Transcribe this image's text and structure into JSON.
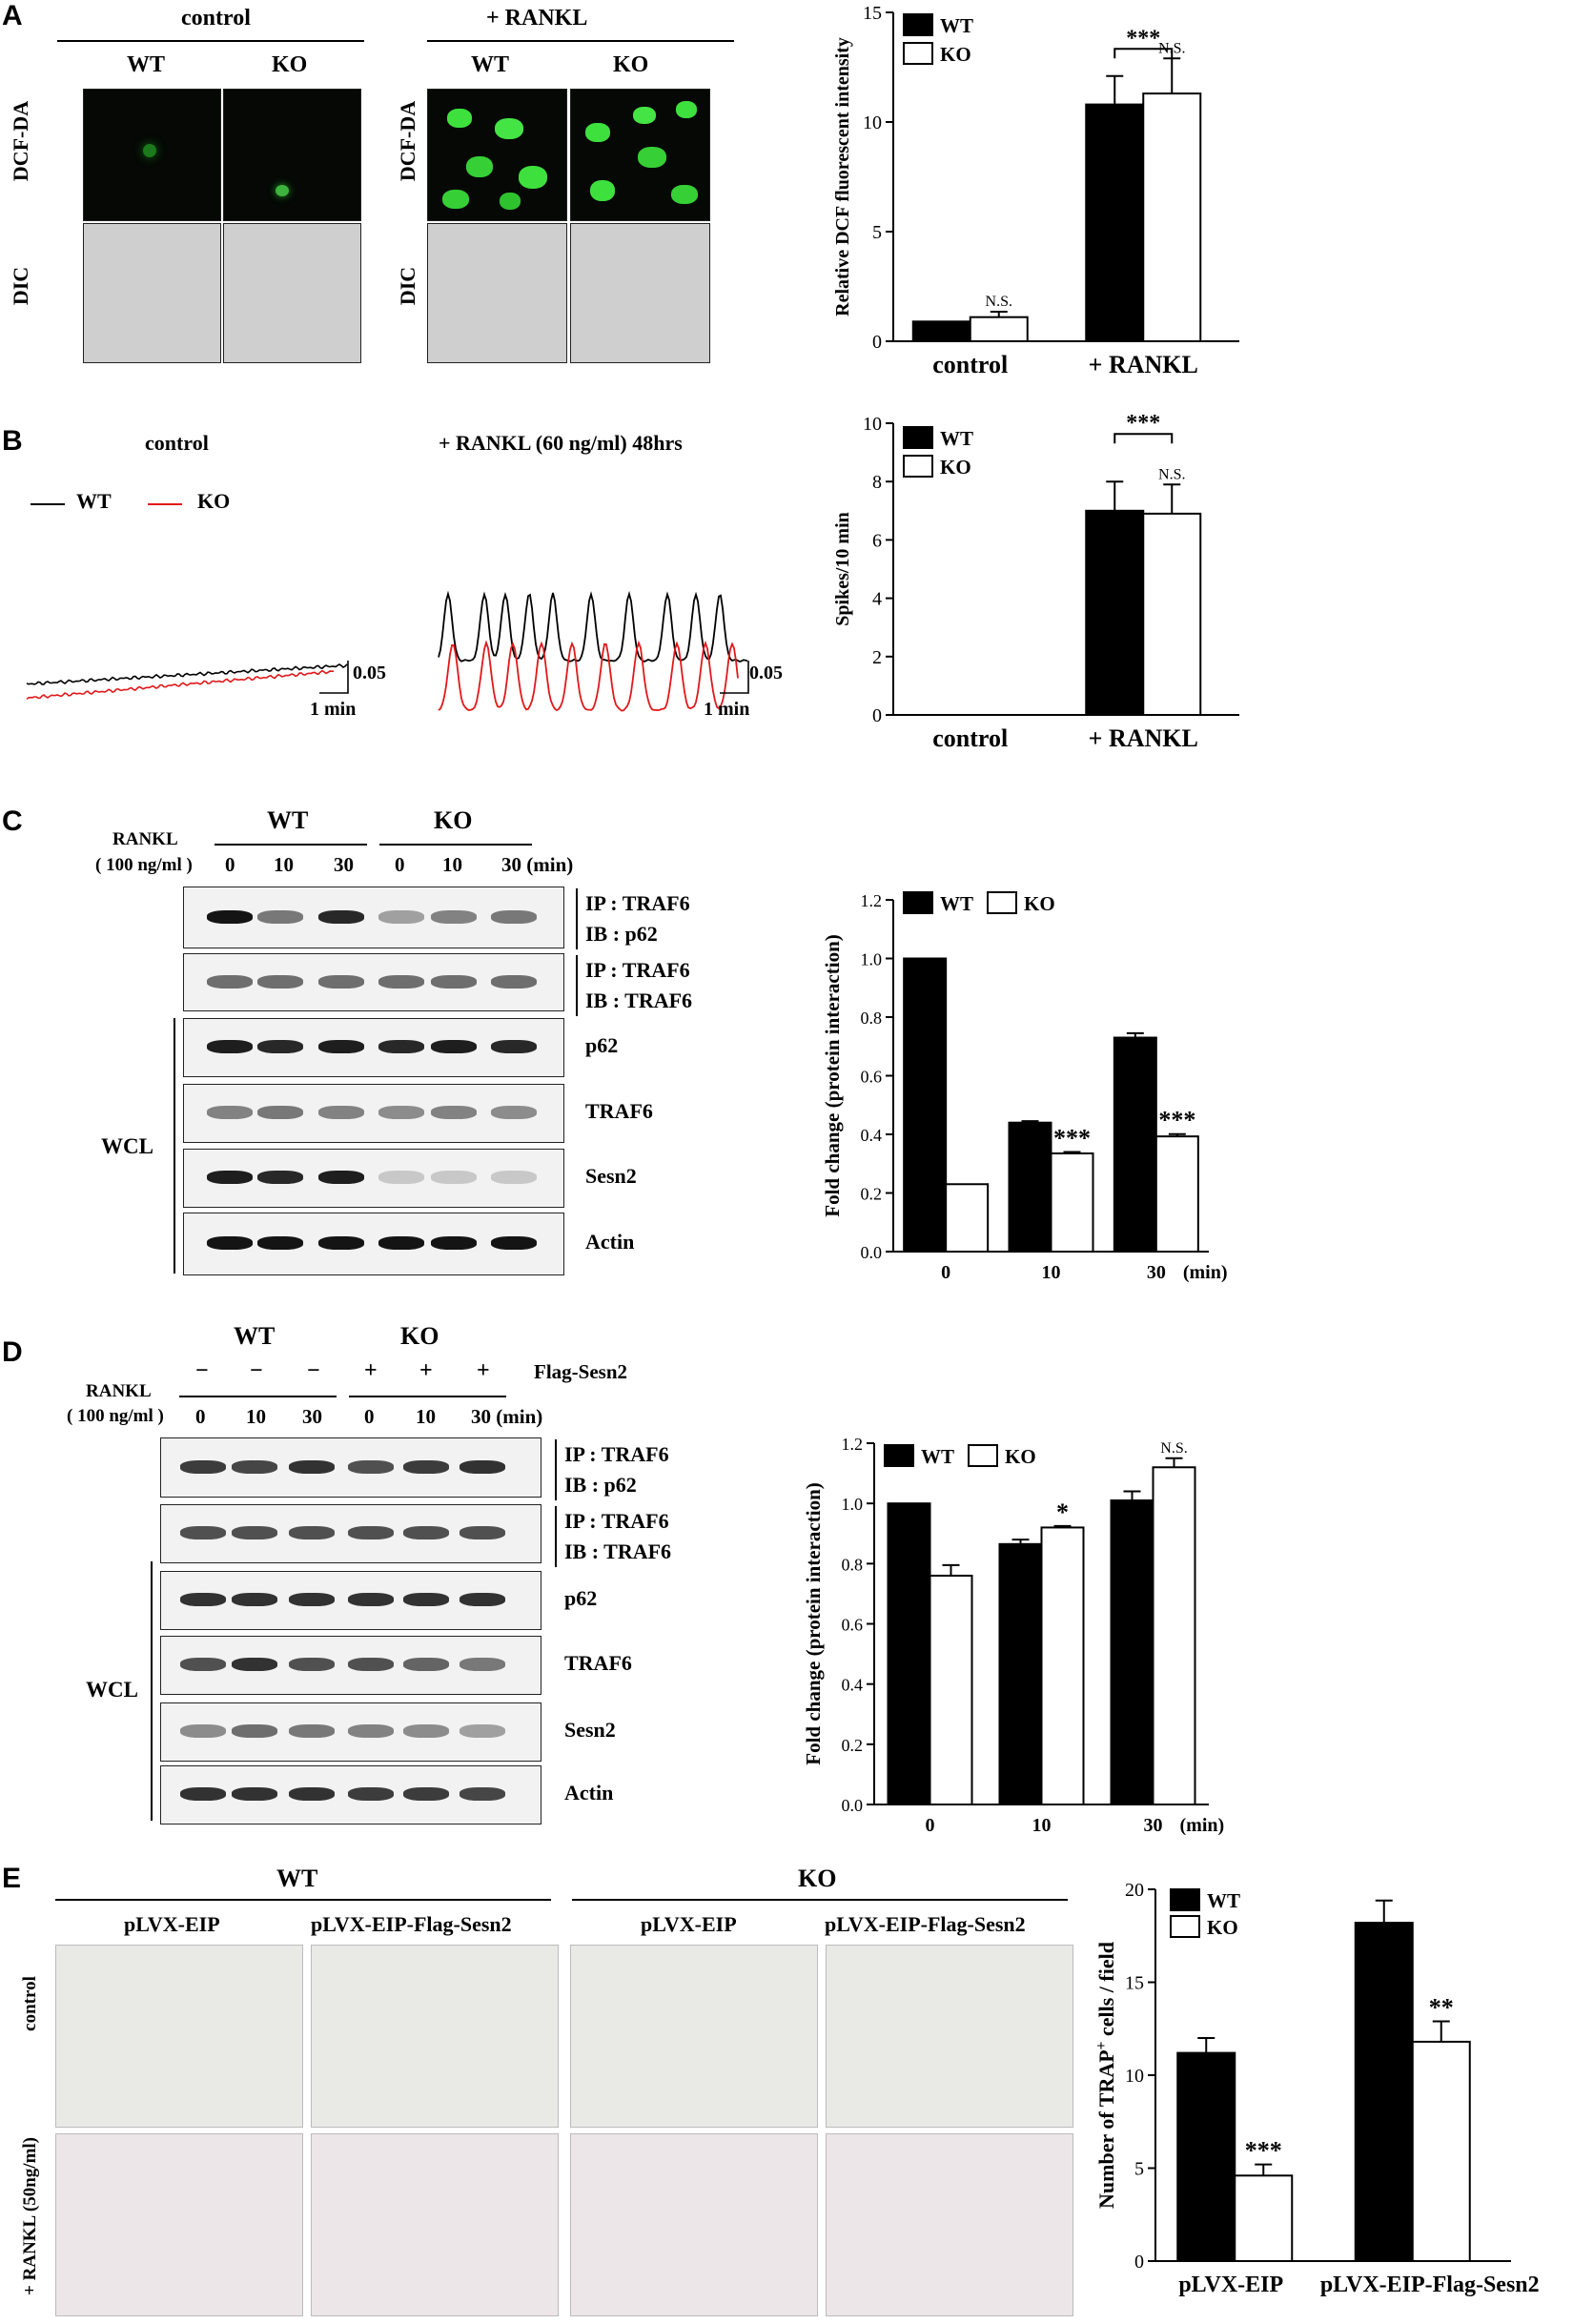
{
  "panels": {
    "A": {
      "letter": "A",
      "group1": "control",
      "group2": "+ RANKL",
      "col_wt": "WT",
      "col_ko": "KO",
      "row1": "DCF-DA",
      "row2": "DIC"
    },
    "B": {
      "letter": "B",
      "trace1_title": "control",
      "trace2_title": "+ RANKL (60 ng/ml) 48hrs",
      "legend_wt": "WT",
      "legend_ko": "KO",
      "scale_y": "0.05",
      "scale_x": "1 min",
      "colors": {
        "wt": "#000000",
        "ko": "#e0191b"
      }
    },
    "C": {
      "letter": "C",
      "treatment": "RANKL",
      "treatment_dose": "( 100 ng/ml )",
      "group_wt": "WT",
      "group_ko": "KO",
      "times": [
        "0",
        "10",
        "30"
      ],
      "time_unit": "30 (min)",
      "wcl": "WCL",
      "blots": [
        {
          "label1": "IP : TRAF6",
          "label2": "IB : p62"
        },
        {
          "label1": "IP : TRAF6",
          "label2": "IB : TRAF6"
        },
        {
          "label1": "p62"
        },
        {
          "label1": "TRAF6"
        },
        {
          "label1": "Sesn2"
        },
        {
          "label1": "Actin"
        }
      ]
    },
    "D": {
      "letter": "D",
      "group_wt": "WT",
      "group_ko": "KO",
      "flag": "Flag-Sesn2",
      "minus": "−",
      "plus": "+",
      "treatment": "RANKL",
      "treatment_dose": "( 100 ng/ml )",
      "times": [
        "0",
        "10",
        "30"
      ],
      "time_unit": "30 (min)",
      "wcl": "WCL",
      "blots": [
        {
          "label1": "IP : TRAF6",
          "label2": "IB : p62"
        },
        {
          "label1": "IP : TRAF6",
          "label2": "IB : TRAF6"
        },
        {
          "label1": "p62"
        },
        {
          "label1": "TRAF6"
        },
        {
          "label1": "Sesn2"
        },
        {
          "label1": "Actin"
        }
      ]
    },
    "E": {
      "letter": "E",
      "group_wt": "WT",
      "group_ko": "KO",
      "vec1": "pLVX-EIP",
      "vec2": "pLVX-EIP-Flag-Sesn2",
      "row1": "control",
      "row2": "+ RANKL (50ng/ml)"
    }
  },
  "chart_data": [
    {
      "id": "A",
      "type": "bar",
      "categories": [
        "control",
        "+ RANKL"
      ],
      "series": [
        {
          "name": "WT",
          "values": [
            0.9,
            10.8
          ],
          "errors": [
            0.0,
            1.3
          ],
          "color": "#000000"
        },
        {
          "name": "KO",
          "values": [
            1.1,
            11.3
          ],
          "errors": [
            0.25,
            1.6
          ],
          "color": "#ffffff"
        }
      ],
      "ylabel": "Relative DCF fluorescent intensity",
      "ylim": [
        0,
        15
      ],
      "yticks": [
        "0",
        "5",
        "10",
        "15"
      ],
      "legend": "top-left",
      "annotations": [
        {
          "text": "***",
          "spans": [
            1,
            1
          ],
          "type": "bracket"
        },
        {
          "text": "N.S.",
          "category": 1,
          "series": 1
        },
        {
          "text": "N.S.",
          "category": 0,
          "series": 1
        }
      ]
    },
    {
      "id": "B",
      "type": "bar",
      "categories": [
        "control",
        "+ RANKL"
      ],
      "series": [
        {
          "name": "WT",
          "values": [
            0,
            7.0
          ],
          "errors": [
            0,
            1.0
          ],
          "color": "#000000"
        },
        {
          "name": "KO",
          "values": [
            0,
            6.9
          ],
          "errors": [
            0,
            1.0
          ],
          "color": "#ffffff"
        }
      ],
      "ylabel": "Spikes/10 min",
      "ylim": [
        0,
        10
      ],
      "yticks": [
        "0",
        "2",
        "4",
        "6",
        "8",
        "10"
      ],
      "legend": "top-left",
      "annotations": [
        {
          "text": "***",
          "type": "bracket"
        },
        {
          "text": "N.S.",
          "category": 1,
          "series": 1
        }
      ]
    },
    {
      "id": "C",
      "type": "bar",
      "categories": [
        "0",
        "10",
        "30"
      ],
      "category_suffix": "(min)",
      "series": [
        {
          "name": "WT",
          "values": [
            1.0,
            0.44,
            0.73
          ],
          "errors": [
            0,
            0.005,
            0.015
          ],
          "color": "#000000"
        },
        {
          "name": "KO",
          "values": [
            0.23,
            0.335,
            0.393
          ],
          "errors": [
            0,
            0.005,
            0.008
          ],
          "color": "#ffffff"
        }
      ],
      "ylabel": "Fold change (protein interaction)",
      "ylim": [
        0,
        1.2
      ],
      "yticks": [
        "0.0",
        "0.2",
        "0.4",
        "0.6",
        "0.8",
        "1.0",
        "1.2"
      ],
      "legend": "top",
      "annotations": [
        {
          "text": "***",
          "category": 1,
          "series": 1
        },
        {
          "text": "***",
          "category": 2,
          "series": 1
        }
      ]
    },
    {
      "id": "D",
      "type": "bar",
      "categories": [
        "0",
        "10",
        "30"
      ],
      "category_suffix": "(min)",
      "series": [
        {
          "name": "WT",
          "values": [
            1.0,
            0.865,
            1.01
          ],
          "errors": [
            0,
            0.015,
            0.03
          ],
          "color": "#000000"
        },
        {
          "name": "KO",
          "values": [
            0.76,
            0.92,
            1.12
          ],
          "errors": [
            0.035,
            0.005,
            0.03
          ],
          "color": "#ffffff"
        }
      ],
      "ylabel": "Fold change (protein interaction)",
      "ylim": [
        0,
        1.2
      ],
      "yticks": [
        "0.0",
        "0.2",
        "0.4",
        "0.6",
        "0.8",
        "1.0",
        "1.2"
      ],
      "legend": "top",
      "annotations": [
        {
          "text": "*",
          "category": 1,
          "series": 1
        },
        {
          "text": "N.S.",
          "category": 2,
          "series": 1
        }
      ]
    },
    {
      "id": "E",
      "type": "bar",
      "categories": [
        "pLVX-EIP",
        "pLVX-EIP-Flag-Sesn2"
      ],
      "series": [
        {
          "name": "WT",
          "values": [
            11.2,
            18.2
          ],
          "errors": [
            0.8,
            1.2
          ],
          "color": "#000000"
        },
        {
          "name": "KO",
          "values": [
            4.6,
            11.8
          ],
          "errors": [
            0.6,
            1.1
          ],
          "color": "#ffffff"
        }
      ],
      "ylabel": "Number of TRAP⁺ cells / field",
      "ylim": [
        0,
        20
      ],
      "yticks": [
        "0",
        "5",
        "10",
        "15",
        "20"
      ],
      "legend": "top-left",
      "annotations": [
        {
          "text": "***",
          "category": 0,
          "series": 1
        },
        {
          "text": "**",
          "category": 1,
          "series": 1
        }
      ]
    }
  ]
}
